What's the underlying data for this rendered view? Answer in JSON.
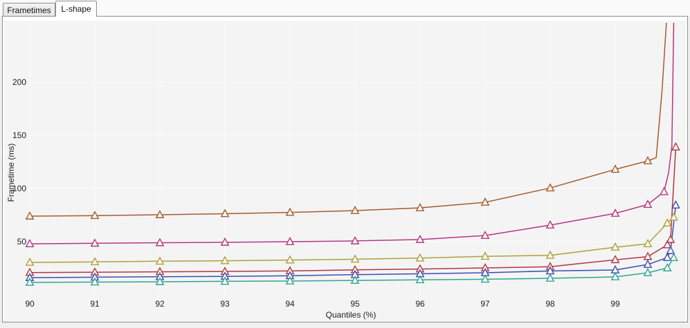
{
  "tabs": {
    "items": [
      {
        "label": "Frametimes",
        "active": false
      },
      {
        "label": "L-shape",
        "active": true
      }
    ]
  },
  "chart_data": {
    "type": "line",
    "title": "",
    "xlabel": "Quantiles (%)",
    "ylabel": "Frametime (ms)",
    "xlim": [
      90,
      100.1
    ],
    "ylim": [
      0,
      256
    ],
    "x_tick_values": [
      90,
      91,
      92,
      93,
      94,
      95,
      96,
      97,
      98,
      99
    ],
    "x_tick_labels": [
      "90",
      "91",
      "92",
      "93",
      "94",
      "95",
      "96",
      "97",
      "98",
      "99"
    ],
    "x_gridline_values": [
      90,
      91,
      92,
      93,
      94,
      95,
      96,
      97,
      98,
      99,
      100
    ],
    "y_tick_values": [
      50,
      100,
      150,
      200
    ],
    "y_tick_labels": [
      "50",
      "100",
      "150",
      "200"
    ],
    "grid": "on",
    "legend": "none",
    "plot_bg": "#f4f4f4",
    "grid_color": "#ffffff",
    "marker_shape": "triangle-open",
    "marker_fill": "#f9f7f4",
    "series": [
      {
        "name": "sienna",
        "color": "#a55b2d",
        "points": [
          [
            90,
            74,
            1
          ],
          [
            91,
            74.5,
            1
          ],
          [
            92,
            75.3,
            1
          ],
          [
            93,
            76.3,
            1
          ],
          [
            94,
            77.5,
            1
          ],
          [
            95,
            79.2,
            1
          ],
          [
            96,
            81.8,
            1
          ],
          [
            97,
            87,
            1
          ],
          [
            98,
            100.5,
            1
          ],
          [
            99,
            118,
            1
          ],
          [
            99.5,
            126,
            1
          ],
          [
            99.63,
            129,
            0
          ],
          [
            99.72,
            193,
            0
          ],
          [
            99.79,
            260,
            0
          ]
        ]
      },
      {
        "name": "magenta",
        "color": "#b33680",
        "points": [
          [
            90,
            48,
            1
          ],
          [
            91,
            48.5,
            1
          ],
          [
            92,
            49,
            1
          ],
          [
            93,
            49.4,
            1
          ],
          [
            94,
            50,
            1
          ],
          [
            95,
            50.7,
            1
          ],
          [
            96,
            52,
            1
          ],
          [
            97,
            55.8,
            1
          ],
          [
            98,
            65.6,
            1
          ],
          [
            99,
            76.6,
            1
          ],
          [
            99.5,
            85,
            1
          ],
          [
            99.75,
            97,
            1
          ],
          [
            99.82,
            115,
            0
          ],
          [
            99.87,
            140,
            0
          ],
          [
            99.9,
            260,
            0
          ]
        ]
      },
      {
        "name": "olive",
        "color": "#aca137",
        "points": [
          [
            90,
            30.5,
            1
          ],
          [
            91,
            31,
            1
          ],
          [
            92,
            31.6,
            1
          ],
          [
            93,
            32.1,
            1
          ],
          [
            94,
            32.7,
            1
          ],
          [
            95,
            33.5,
            1
          ],
          [
            96,
            34.6,
            1
          ],
          [
            97,
            36.2,
            1
          ],
          [
            98,
            37.2,
            1
          ],
          [
            99,
            44.8,
            1
          ],
          [
            99.5,
            48,
            1
          ],
          [
            99.8,
            67.5,
            1
          ],
          [
            99.9,
            73,
            1
          ]
        ]
      },
      {
        "name": "crimson",
        "color": "#b23542",
        "points": [
          [
            90,
            21,
            1
          ],
          [
            91,
            21.3,
            1
          ],
          [
            92,
            21.7,
            1
          ],
          [
            93,
            22,
            1
          ],
          [
            94,
            22.5,
            1
          ],
          [
            95,
            23.5,
            1
          ],
          [
            96,
            24.3,
            1
          ],
          [
            97,
            25.3,
            1
          ],
          [
            98,
            26.5,
            1
          ],
          [
            99,
            33,
            1
          ],
          [
            99.5,
            36,
            1
          ],
          [
            99.8,
            47,
            1
          ],
          [
            99.85,
            52,
            1
          ],
          [
            99.93,
            139,
            1
          ]
        ]
      },
      {
        "name": "blue",
        "color": "#3c4db1",
        "points": [
          [
            90,
            16.2,
            1
          ],
          [
            91,
            16.6,
            1
          ],
          [
            92,
            17,
            1
          ],
          [
            93,
            17.4,
            1
          ],
          [
            94,
            17.9,
            1
          ],
          [
            95,
            19,
            1
          ],
          [
            96,
            19.8,
            1
          ],
          [
            97,
            20.8,
            1
          ],
          [
            98,
            22.5,
            1
          ],
          [
            99,
            23.4,
            1
          ],
          [
            99.5,
            28.6,
            1
          ],
          [
            99.8,
            35,
            1
          ],
          [
            99.85,
            41.6,
            1
          ],
          [
            99.93,
            84.4,
            1
          ]
        ]
      },
      {
        "name": "teal",
        "color": "#2ea593",
        "points": [
          [
            90,
            11.7,
            1
          ],
          [
            91,
            12,
            1
          ],
          [
            92,
            12.3,
            1
          ],
          [
            93,
            12.7,
            1
          ],
          [
            94,
            13,
            1
          ],
          [
            95,
            13.6,
            1
          ],
          [
            96,
            14.1,
            1
          ],
          [
            97,
            14.7,
            1
          ],
          [
            98,
            15.6,
            1
          ],
          [
            99,
            16.9,
            1
          ],
          [
            99.5,
            20.8,
            1
          ],
          [
            99.8,
            25.3,
            1
          ],
          [
            99.9,
            35,
            1
          ]
        ]
      }
    ]
  }
}
